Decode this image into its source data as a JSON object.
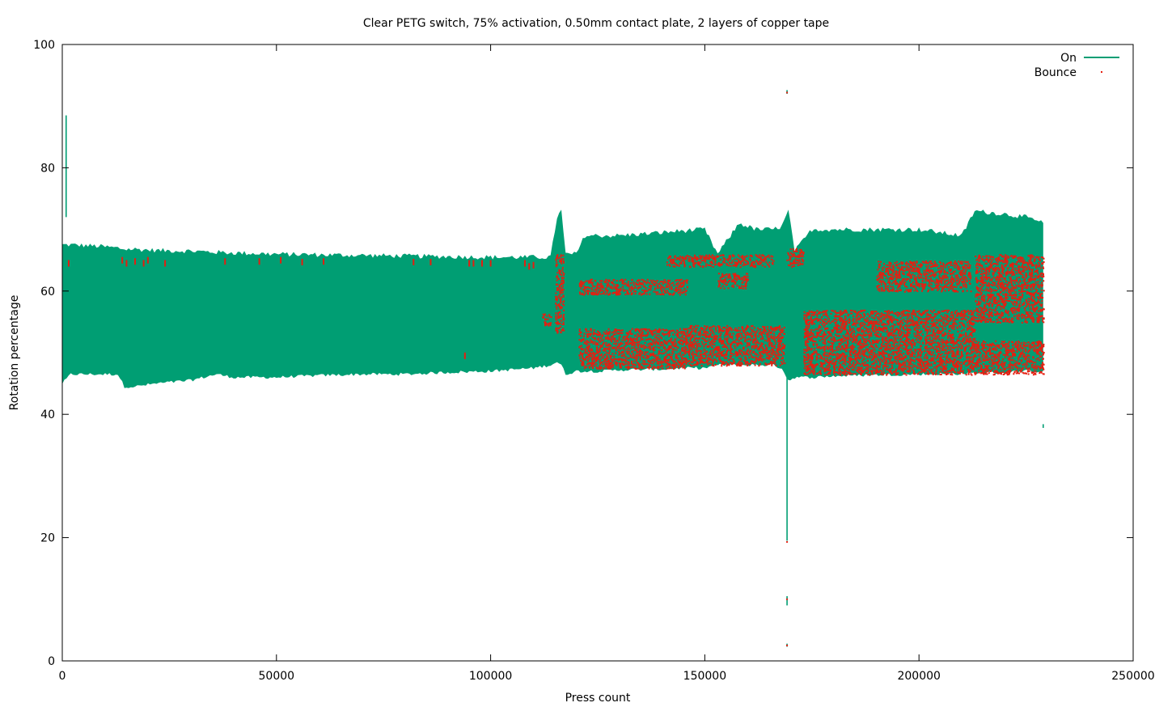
{
  "chart_data": {
    "type": "area",
    "title": "Clear PETG switch, 75% activation, 0.50mm contact plate, 2 layers of copper tape",
    "xlabel": "Press count",
    "ylabel": "Rotation percentage",
    "xlim": [
      0,
      250000
    ],
    "ylim": [
      0,
      100
    ],
    "x_ticks": [
      0,
      50000,
      100000,
      150000,
      200000,
      250000
    ],
    "y_ticks": [
      0,
      20,
      40,
      60,
      80,
      100
    ],
    "x_tick_labels": [
      "0",
      "50000",
      "100000",
      "150000",
      "200000",
      "250000"
    ],
    "y_tick_labels": [
      "0",
      "20",
      "40",
      "60",
      "80",
      "100"
    ],
    "grid": false,
    "legend_position": "top-right",
    "colors": {
      "on": "#009e73",
      "bounce": "#e51e10"
    },
    "series": [
      {
        "name": "On",
        "style": "line",
        "band": {
          "x": [
            0,
            2000,
            8000,
            13000,
            14500,
            17000,
            22000,
            30000,
            36000,
            40000,
            50000,
            60000,
            70000,
            80000,
            90000,
            100000,
            110000,
            114000,
            115500,
            116500,
            117500,
            120000,
            122000,
            126000,
            130000,
            140000,
            145000,
            150000,
            153000,
            158000,
            162000,
            166000,
            168000,
            169500,
            171000,
            175000,
            180000,
            190000,
            200000,
            210000,
            213000,
            220000,
            225000,
            229000
          ],
          "low": [
            45,
            46.5,
            46.5,
            46.5,
            44.5,
            44.5,
            45,
            45.5,
            46.5,
            46,
            46,
            46.3,
            46.5,
            46.5,
            46.8,
            47,
            47.5,
            48,
            48.5,
            48,
            46.5,
            47,
            47,
            47,
            47.2,
            47.3,
            47.5,
            47.5,
            48,
            48,
            48,
            48,
            47.5,
            45.5,
            46,
            46,
            46.2,
            46.4,
            46.5,
            46.6,
            46.7,
            46.8,
            47,
            47
          ],
          "high": [
            67.5,
            67.5,
            67.3,
            67,
            66.8,
            66.8,
            66.6,
            66.5,
            66.3,
            66.2,
            66,
            65.9,
            65.8,
            65.7,
            65.6,
            65.5,
            65.5,
            65.5,
            72,
            73,
            66,
            66,
            69,
            69,
            69,
            69.5,
            69.8,
            70,
            66,
            71,
            70,
            70,
            70.5,
            73,
            66.5,
            70,
            70,
            70,
            70,
            69,
            73,
            72.5,
            72,
            71
          ]
        },
        "spikes": [
          {
            "x": 900,
            "y_low": 72,
            "y_high": 88.5
          },
          {
            "x": 169200,
            "y_low": 19.5,
            "y_high": 46
          },
          {
            "x": 169200,
            "y_low": 9,
            "y_high": 10.5
          },
          {
            "x": 169200,
            "y_low": 2.3,
            "y_high": 2.8
          },
          {
            "x": 169200,
            "y_low": 92,
            "y_high": 92.6
          },
          {
            "x": 229000,
            "y_low": 37.8,
            "y_high": 38.4
          }
        ]
      },
      {
        "name": "Bounce",
        "style": "points",
        "regions": [
          {
            "x0": 115000,
            "x1": 117000,
            "y0": 53,
            "y1": 66
          },
          {
            "x0": 120500,
            "x1": 146000,
            "y0": 47.5,
            "y1": 54
          },
          {
            "x0": 146000,
            "x1": 168500,
            "y0": 48,
            "y1": 54.5
          },
          {
            "x0": 120500,
            "x1": 146000,
            "y0": 59.5,
            "y1": 62
          },
          {
            "x0": 141000,
            "x1": 166000,
            "y0": 64,
            "y1": 66
          },
          {
            "x0": 153000,
            "x1": 160000,
            "y0": 60.5,
            "y1": 63
          },
          {
            "x0": 169000,
            "x1": 173000,
            "y0": 64,
            "y1": 67
          },
          {
            "x0": 173000,
            "x1": 213000,
            "y0": 46.5,
            "y1": 57
          },
          {
            "x0": 213000,
            "x1": 229000,
            "y0": 55,
            "y1": 66
          },
          {
            "x0": 213000,
            "x1": 229000,
            "y0": 46.5,
            "y1": 52
          },
          {
            "x0": 190000,
            "x1": 212000,
            "y0": 60,
            "y1": 65
          },
          {
            "x0": 112000,
            "x1": 114000,
            "y0": 54.5,
            "y1": 56.5
          }
        ],
        "scatter_x": [
          1500,
          14000,
          15000,
          17000,
          19000,
          20000,
          24000,
          38000,
          46000,
          51000,
          56000,
          61000,
          82000,
          86000,
          95000,
          96000,
          98000,
          100000,
          108000,
          109000,
          110000,
          94000
        ],
        "scatter_y": [
          64.5,
          65,
          64.5,
          64.8,
          64.5,
          65,
          64.5,
          64.8,
          64.8,
          65,
          64.7,
          64.8,
          64.7,
          64.7,
          64.5,
          64.5,
          64.5,
          64.5,
          64.5,
          64,
          64.2,
          49.5
        ],
        "isolated": [
          {
            "x": 169200,
            "y": 19.3
          },
          {
            "x": 169200,
            "y": 10
          },
          {
            "x": 169200,
            "y": 2.5
          },
          {
            "x": 169200,
            "y": 92.2
          }
        ]
      }
    ]
  }
}
